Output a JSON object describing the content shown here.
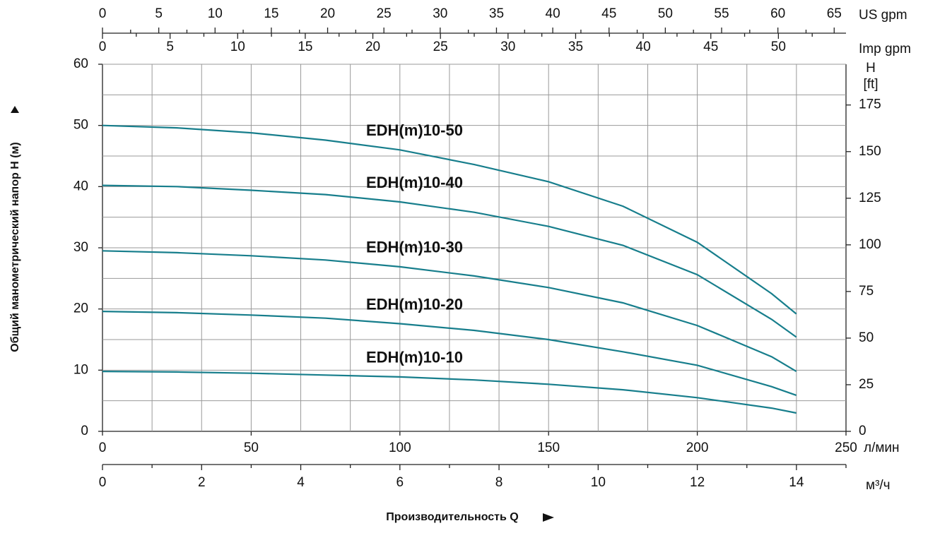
{
  "chart_data": {
    "type": "line",
    "ylabel": "Общий манометрический напор H (м)",
    "xlabel": "Производительность Q",
    "x_unit": "л/мин",
    "x": [
      0,
      25,
      50,
      75,
      100,
      125,
      150,
      175,
      200,
      225,
      233.3
    ],
    "xlim": [
      0,
      250
    ],
    "xticks": [
      0,
      50,
      100,
      150,
      200,
      250
    ],
    "ylim": [
      0,
      60
    ],
    "yticks": [
      0,
      10,
      20,
      30,
      40,
      50,
      60
    ],
    "y_minor_ticks": [
      5,
      15,
      25,
      35,
      45,
      55
    ],
    "y2label": "H",
    "y2unit": "[ft]",
    "y2lim": [
      0,
      196.85
    ],
    "y2ticks": [
      0,
      25,
      50,
      75,
      100,
      125,
      150,
      175
    ],
    "grid": true,
    "m3h_axis": {
      "unit": "м³/ч",
      "lim": [
        0,
        15
      ],
      "ticks": [
        0,
        2,
        4,
        6,
        8,
        10,
        12,
        14
      ],
      "minor_ticks": [
        1,
        3,
        5,
        7,
        9,
        11,
        13,
        15
      ]
    },
    "us_gpm_axis": {
      "unit": "US gpm",
      "lim": [
        0,
        66.05
      ],
      "ticks": [
        0,
        5,
        10,
        15,
        20,
        25,
        30,
        35,
        40,
        45,
        50,
        55,
        60,
        65
      ],
      "minor_ticks": [
        2.5,
        7.5,
        12.5,
        17.5,
        22.5,
        27.5,
        32.5,
        37.5,
        42.5,
        47.5,
        52.5,
        57.5,
        62.5
      ]
    },
    "imp_gpm_axis": {
      "unit": "Imp gpm",
      "lim": [
        0,
        55
      ],
      "ticks": [
        0,
        5,
        10,
        15,
        20,
        25,
        30,
        35,
        40,
        45,
        50
      ],
      "minor_ticks": [
        2.5,
        7.5,
        12.5,
        17.5,
        22.5,
        27.5,
        32.5,
        37.5,
        42.5,
        47.5,
        52.5
      ]
    },
    "series": [
      {
        "name": "EDH(m)10-50",
        "color": "#177e8c",
        "values": [
          50,
          49.6,
          48.8,
          47.6,
          46.0,
          43.6,
          40.8,
          36.8,
          30.9,
          22.5,
          19.2
        ]
      },
      {
        "name": "EDH(m)10-40",
        "color": "#177e8c",
        "values": [
          40.2,
          40,
          39.4,
          38.7,
          37.5,
          35.8,
          33.5,
          30.4,
          25.6,
          18.3,
          15.4
        ]
      },
      {
        "name": "EDH(m)10-30",
        "color": "#177e8c",
        "values": [
          29.5,
          29.2,
          28.7,
          28.0,
          26.9,
          25.4,
          23.5,
          21.0,
          17.3,
          12.2,
          9.8
        ]
      },
      {
        "name": "EDH(m)10-20",
        "color": "#177e8c",
        "values": [
          19.6,
          19.4,
          19.0,
          18.5,
          17.6,
          16.5,
          15.0,
          13.0,
          10.8,
          7.3,
          5.9
        ]
      },
      {
        "name": "EDH(m)10-10",
        "color": "#177e8c",
        "values": [
          9.8,
          9.7,
          9.5,
          9.2,
          8.9,
          8.4,
          7.7,
          6.8,
          5.5,
          3.8,
          3.0
        ]
      }
    ]
  }
}
